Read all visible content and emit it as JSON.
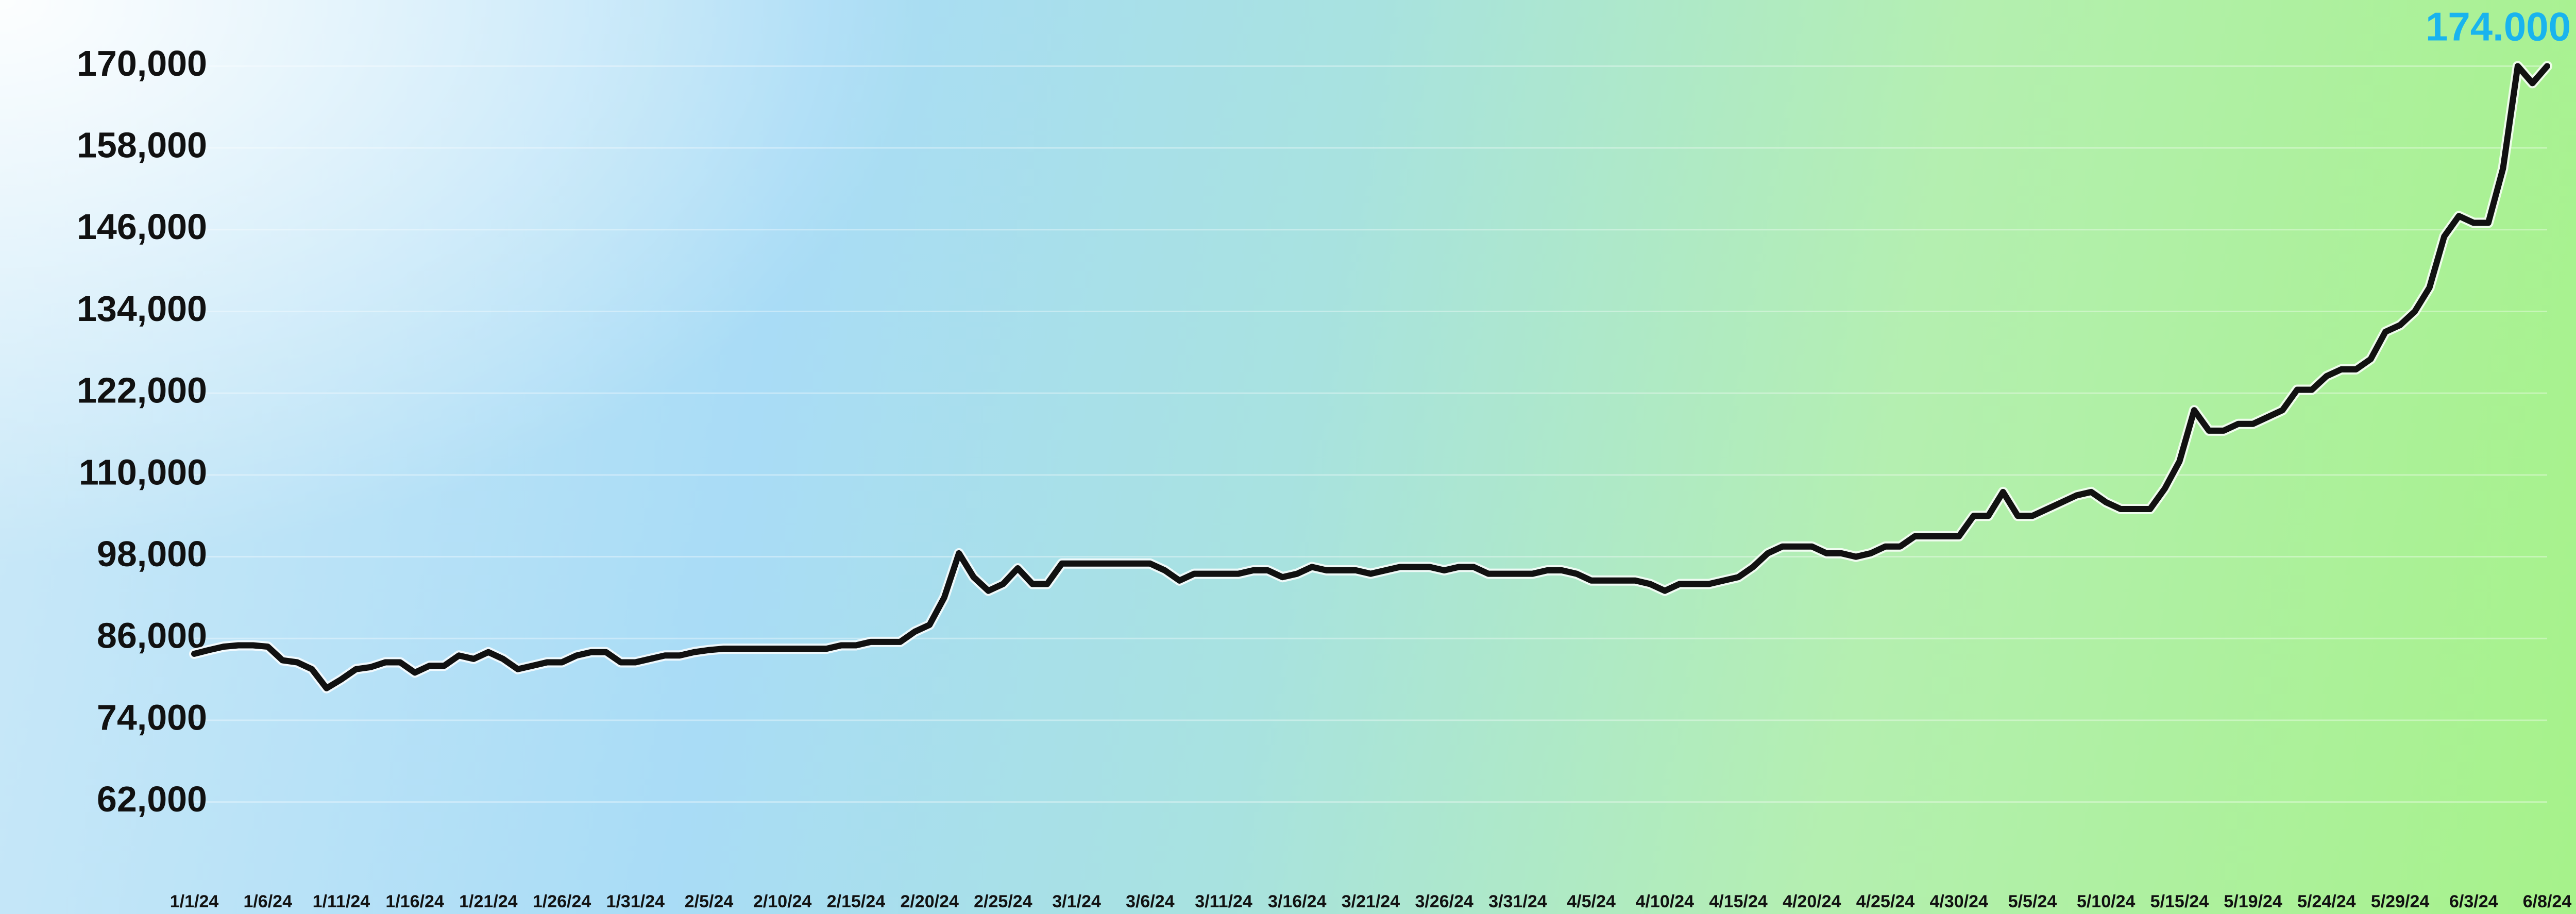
{
  "chart_data": {
    "type": "line",
    "annotation": "174.000",
    "categories": [
      "1/1/24",
      null,
      null,
      null,
      null,
      "1/6/24",
      null,
      null,
      null,
      null,
      "1/11/24",
      null,
      null,
      null,
      null,
      "1/16/24",
      null,
      null,
      null,
      null,
      "1/21/24",
      null,
      null,
      null,
      null,
      "1/26/24",
      null,
      null,
      null,
      null,
      "1/31/24",
      null,
      null,
      null,
      null,
      "2/5/24",
      null,
      null,
      null,
      null,
      "2/10/24",
      null,
      null,
      null,
      null,
      "2/15/24",
      null,
      null,
      null,
      null,
      "2/20/24",
      null,
      null,
      null,
      null,
      "2/25/24",
      null,
      null,
      null,
      null,
      "3/1/24",
      null,
      null,
      null,
      null,
      "3/6/24",
      null,
      null,
      null,
      null,
      "3/11/24",
      null,
      null,
      null,
      null,
      "3/16/24",
      null,
      null,
      null,
      null,
      "3/21/24",
      null,
      null,
      null,
      null,
      "3/26/24",
      null,
      null,
      null,
      null,
      "3/31/24",
      null,
      null,
      null,
      null,
      "4/5/24",
      null,
      null,
      null,
      null,
      "4/10/24",
      null,
      null,
      null,
      null,
      "4/15/24",
      null,
      null,
      null,
      null,
      "4/20/24",
      null,
      null,
      null,
      null,
      "4/25/24",
      null,
      null,
      null,
      null,
      "4/30/24",
      null,
      null,
      null,
      null,
      "5/5/24",
      null,
      null,
      null,
      null,
      "5/10/24",
      null,
      null,
      null,
      null,
      "5/15/24",
      null,
      null,
      null,
      null,
      "5/19/24",
      null,
      null,
      null,
      null,
      "5/24/24",
      null,
      null,
      null,
      null,
      "5/29/24",
      null,
      null,
      null,
      null,
      "6/3/24",
      null,
      null,
      null,
      null,
      "6/8/24"
    ],
    "series": [
      {
        "color": "#111111",
        "values": [
          83750,
          84300,
          84800,
          85000,
          85000,
          84800,
          82800,
          82500,
          81500,
          78700,
          80000,
          81500,
          81800,
          82500,
          82500,
          81000,
          82000,
          82000,
          83500,
          83000,
          84000,
          83000,
          81500,
          82000,
          82500,
          82500,
          83500,
          84000,
          84000,
          82500,
          82500,
          83000,
          83500,
          83500,
          84000,
          84300,
          84500,
          84500,
          84500,
          84500,
          84500,
          84500,
          84500,
          84500,
          85000,
          85000,
          85500,
          85500,
          85500,
          87000,
          88000,
          92000,
          98500,
          95000,
          93000,
          94000,
          96300,
          94000,
          94000,
          97000,
          97000,
          97000,
          97000,
          97000,
          97000,
          97000,
          96000,
          94500,
          95500,
          95500,
          95500,
          95500,
          96000,
          96000,
          95000,
          95500,
          96500,
          96000,
          96000,
          96000,
          95500,
          96000,
          96500,
          96500,
          96500,
          96000,
          96500,
          96500,
          95500,
          95500,
          95500,
          95500,
          96000,
          96000,
          95500,
          94500,
          94500,
          94500,
          94500,
          94000,
          93000,
          94000,
          94000,
          94000,
          94500,
          95000,
          96500,
          98500,
          99500,
          99500,
          99500,
          98500,
          98500,
          98000,
          98500,
          99500,
          99500,
          101000,
          101000,
          101000,
          101000,
          104000,
          104000,
          107500,
          104000,
          104000,
          105000,
          106000,
          107000,
          107500,
          106000,
          105000,
          105000,
          105000,
          108000,
          112000,
          119500,
          116500,
          116500,
          117500,
          117500,
          118500,
          119500,
          122500,
          122500,
          124500,
          125500,
          125500,
          127000,
          131000,
          132000,
          134000,
          137500,
          145000,
          148000,
          147000,
          147000,
          155000,
          170000,
          167500,
          170000
        ]
      }
    ],
    "ylim": [
      56000,
      176000
    ],
    "yticks": [
      {
        "value": 62000,
        "label": "62,000"
      },
      {
        "value": 74000,
        "label": "74,000"
      },
      {
        "value": 86000,
        "label": "86,000"
      },
      {
        "value": 98000,
        "label": "98,000"
      },
      {
        "value": 110000,
        "label": "110,000"
      },
      {
        "value": 122000,
        "label": "122,000"
      },
      {
        "value": 134000,
        "label": "134,000"
      },
      {
        "value": 146000,
        "label": "146,000"
      },
      {
        "value": 158000,
        "label": "158,000"
      },
      {
        "value": 170000,
        "label": "170,000"
      }
    ],
    "grid": true
  }
}
